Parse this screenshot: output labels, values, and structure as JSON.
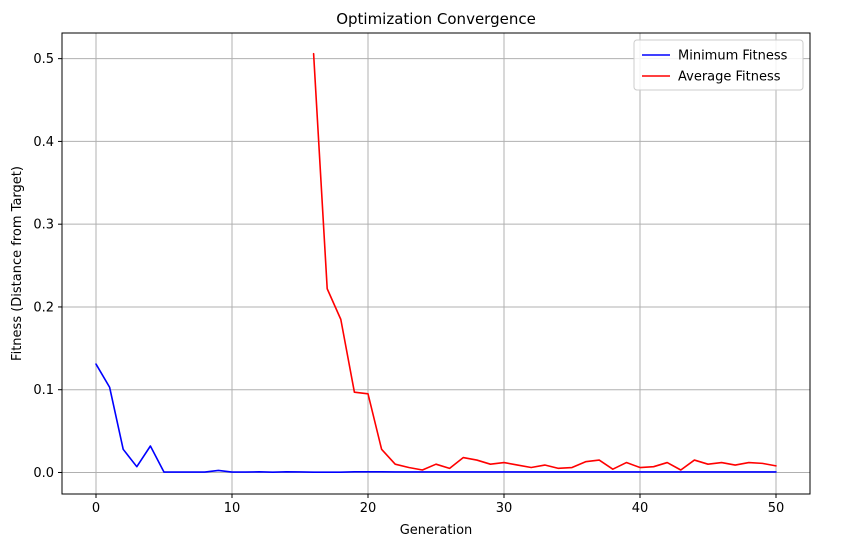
{
  "chart_data": {
    "type": "line",
    "title": "Optimization Convergence",
    "xlabel": "Generation",
    "ylabel": "Fitness (Distance from Target)",
    "xlim": [
      -2.5,
      52.5
    ],
    "ylim": [
      -0.026,
      0.531
    ],
    "xticks": [
      0,
      10,
      20,
      30,
      40,
      50
    ],
    "yticks": [
      0.0,
      0.1,
      0.2,
      0.3,
      0.4,
      0.5
    ],
    "grid": true,
    "legend_position": "top-right",
    "series": [
      {
        "name": "Minimum Fitness",
        "color": "#0000ff",
        "x": [
          0,
          1,
          2,
          3,
          4,
          5,
          6,
          7,
          8,
          9,
          10,
          11,
          12,
          13,
          14,
          15,
          16,
          17,
          18,
          19,
          20,
          21,
          22,
          23,
          24,
          25,
          26,
          27,
          28,
          29,
          30,
          31,
          32,
          33,
          34,
          35,
          36,
          37,
          38,
          39,
          40,
          41,
          42,
          43,
          44,
          45,
          46,
          47,
          48,
          49,
          50
        ],
        "values": [
          0.131,
          0.103,
          0.028,
          0.007,
          0.032,
          0.0005,
          0.0005,
          0.0005,
          0.0005,
          0.0025,
          0.0005,
          0.0005,
          0.0008,
          0.0004,
          0.0008,
          0.0007,
          0.0003,
          0.0003,
          0.0003,
          0.0008,
          0.0008,
          0.0008,
          0.0007,
          0.0007,
          0.0007,
          0.0007,
          0.0007,
          0.0007,
          0.0007,
          0.0007,
          0.0007,
          0.0007,
          0.0007,
          0.0007,
          0.0007,
          0.0007,
          0.0007,
          0.0007,
          0.0007,
          0.0007,
          0.0007,
          0.0007,
          0.0007,
          0.0007,
          0.0007,
          0.0007,
          0.0007,
          0.0007,
          0.0007,
          0.0007,
          0.0007
        ]
      },
      {
        "name": "Average Fitness",
        "color": "#ff0000",
        "x": [
          16,
          17,
          18,
          19,
          20,
          21,
          22,
          23,
          24,
          25,
          26,
          27,
          28,
          29,
          30,
          31,
          32,
          33,
          34,
          35,
          36,
          37,
          38,
          39,
          40,
          41,
          42,
          43,
          44,
          45,
          46,
          47,
          48,
          49,
          50
        ],
        "values": [
          0.506,
          0.222,
          0.185,
          0.097,
          0.095,
          0.028,
          0.01,
          0.006,
          0.003,
          0.01,
          0.005,
          0.018,
          0.015,
          0.01,
          0.012,
          0.009,
          0.006,
          0.009,
          0.005,
          0.006,
          0.013,
          0.015,
          0.004,
          0.012,
          0.006,
          0.007,
          0.012,
          0.003,
          0.015,
          0.01,
          0.012,
          0.009,
          0.012,
          0.011,
          0.008
        ]
      }
    ]
  }
}
